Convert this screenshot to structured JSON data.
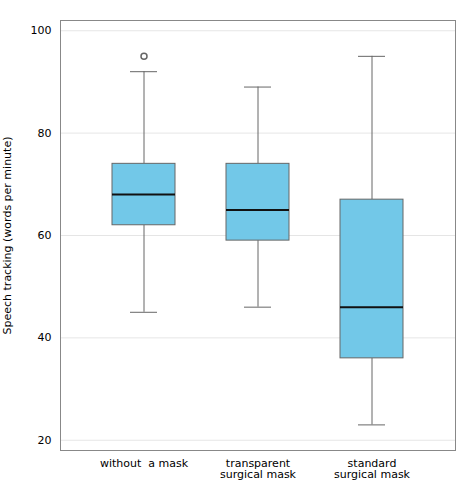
{
  "chart_data": {
    "type": "box",
    "categories": [
      "without  a mask",
      "transparent\nsurgical mask",
      "standard\nsurgical mask"
    ],
    "boxes": [
      {
        "q1": 62,
        "median": 68,
        "q3": 74,
        "whislo": 45,
        "whishi": 92,
        "fliers": [
          95
        ]
      },
      {
        "q1": 59,
        "median": 65,
        "q3": 74,
        "whislo": 46,
        "whishi": 89,
        "fliers": []
      },
      {
        "q1": 36,
        "median": 46,
        "q3": 67,
        "whislo": 23,
        "whishi": 95,
        "fliers": []
      }
    ],
    "ylim": [
      18,
      102
    ],
    "yticks": [
      20,
      40,
      60,
      80,
      100
    ],
    "ylabel": "Speech tracking (words per minute)",
    "color": "#72C8E8",
    "grid": true
  }
}
